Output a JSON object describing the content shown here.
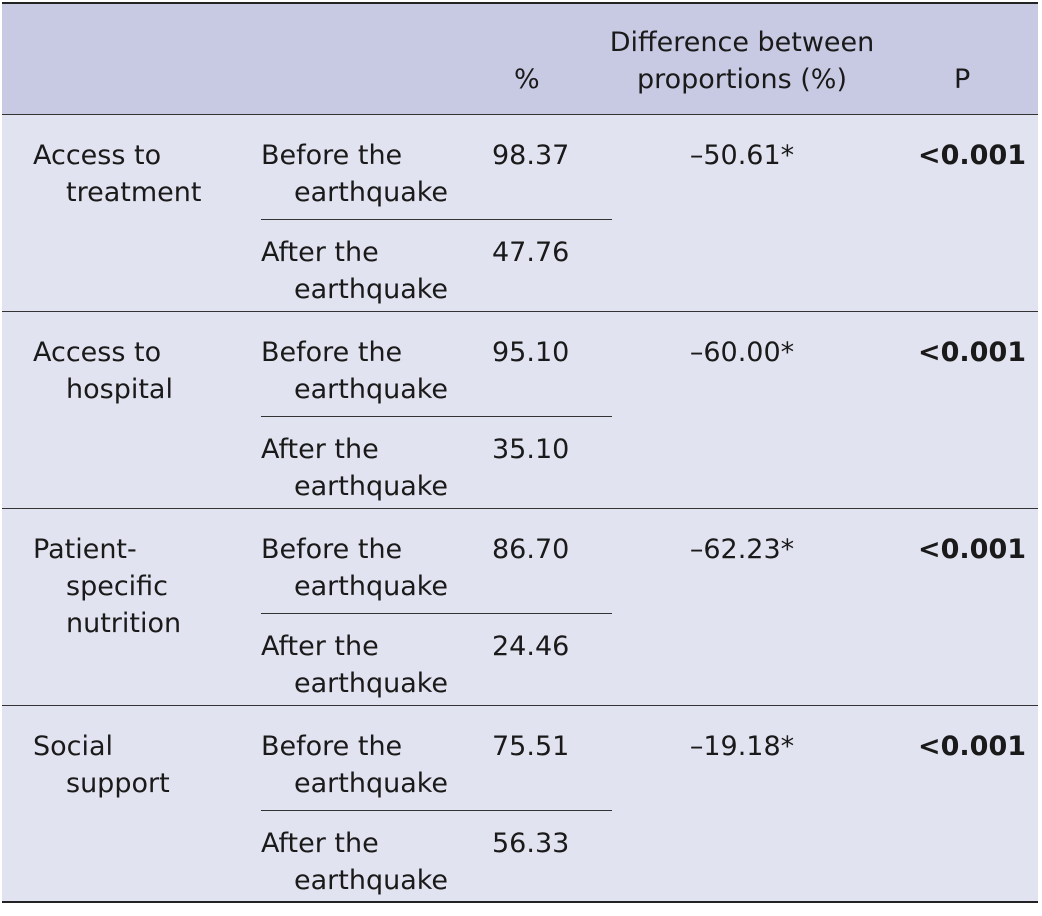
{
  "header": {
    "col_pct": "%",
    "col_diff": [
      "Difference between",
      "proportions (%)"
    ],
    "col_p": "P"
  },
  "groups": [
    {
      "variable": [
        "Access to",
        "treatment"
      ],
      "before_label": [
        "Before the",
        "earthquake"
      ],
      "before_value": "98.37",
      "after_label": [
        "After the",
        "earthquake"
      ],
      "after_value": "47.76",
      "difference": "–50.61*",
      "p": "<0.001"
    },
    {
      "variable": [
        "Access to",
        "hospital"
      ],
      "before_label": [
        "Before the",
        "earthquake"
      ],
      "before_value": "95.10",
      "after_label": [
        "After the",
        "earthquake"
      ],
      "after_value": "35.10",
      "difference": "–60.00*",
      "p": "<0.001"
    },
    {
      "variable": [
        "Patient-",
        "specific",
        "nutrition"
      ],
      "before_label": [
        "Before the",
        "earthquake"
      ],
      "before_value": "86.70",
      "after_label": [
        "After the",
        "earthquake"
      ],
      "after_value": "24.46",
      "difference": "–62.23*",
      "p": "<0.001"
    },
    {
      "variable": [
        "Social",
        "support"
      ],
      "before_label": [
        "Before the",
        "earthquake"
      ],
      "before_value": "75.51",
      "after_label": [
        "After the",
        "earthquake"
      ],
      "after_value": "56.33",
      "difference": "–19.18*",
      "p": "<0.001"
    }
  ]
}
